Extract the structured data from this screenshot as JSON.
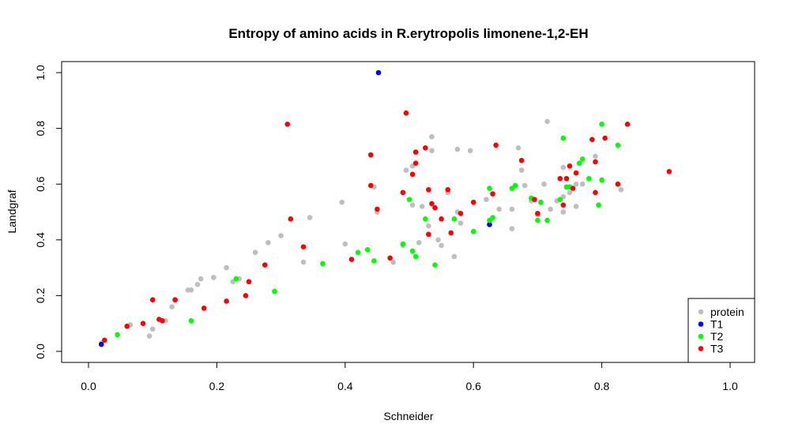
{
  "chart_data": {
    "type": "scatter",
    "title": "Entropy of amino acids in R.erytropolis limonene-1,2-EH",
    "xlabel": "Schneider",
    "ylabel": "Landgraf",
    "xlim": [
      0.0,
      1.0
    ],
    "ylim": [
      0.0,
      1.0
    ],
    "xticks": [
      "0.0",
      "0.2",
      "0.4",
      "0.6",
      "0.8",
      "1.0"
    ],
    "yticks": [
      "0.0",
      "0.2",
      "0.4",
      "0.6",
      "0.8",
      "1.0"
    ],
    "grid": false,
    "legend_position": "bottom-right",
    "series": [
      {
        "name": "protein",
        "color": "#bebebe",
        "points": [
          [
            0.02,
            0.03
          ],
          [
            0.065,
            0.095
          ],
          [
            0.095,
            0.055
          ],
          [
            0.1,
            0.08
          ],
          [
            0.12,
            0.11
          ],
          [
            0.13,
            0.16
          ],
          [
            0.135,
            0.185
          ],
          [
            0.155,
            0.22
          ],
          [
            0.16,
            0.22
          ],
          [
            0.17,
            0.24
          ],
          [
            0.175,
            0.26
          ],
          [
            0.195,
            0.265
          ],
          [
            0.215,
            0.3
          ],
          [
            0.225,
            0.25
          ],
          [
            0.235,
            0.26
          ],
          [
            0.26,
            0.355
          ],
          [
            0.28,
            0.39
          ],
          [
            0.3,
            0.415
          ],
          [
            0.335,
            0.32
          ],
          [
            0.345,
            0.48
          ],
          [
            0.395,
            0.535
          ],
          [
            0.4,
            0.385
          ],
          [
            0.445,
            0.59
          ],
          [
            0.45,
            0.5
          ],
          [
            0.475,
            0.32
          ],
          [
            0.49,
            0.38
          ],
          [
            0.495,
            0.65
          ],
          [
            0.505,
            0.665
          ],
          [
            0.505,
            0.525
          ],
          [
            0.515,
            0.39
          ],
          [
            0.52,
            0.52
          ],
          [
            0.53,
            0.42
          ],
          [
            0.53,
            0.45
          ],
          [
            0.535,
            0.77
          ],
          [
            0.535,
            0.72
          ],
          [
            0.545,
            0.4
          ],
          [
            0.55,
            0.38
          ],
          [
            0.56,
            0.57
          ],
          [
            0.57,
            0.34
          ],
          [
            0.575,
            0.725
          ],
          [
            0.575,
            0.5
          ],
          [
            0.58,
            0.46
          ],
          [
            0.595,
            0.72
          ],
          [
            0.62,
            0.545
          ],
          [
            0.64,
            0.51
          ],
          [
            0.66,
            0.44
          ],
          [
            0.66,
            0.51
          ],
          [
            0.67,
            0.73
          ],
          [
            0.675,
            0.65
          ],
          [
            0.68,
            0.595
          ],
          [
            0.69,
            0.54
          ],
          [
            0.7,
            0.49
          ],
          [
            0.71,
            0.6
          ],
          [
            0.715,
            0.825
          ],
          [
            0.72,
            0.51
          ],
          [
            0.73,
            0.54
          ],
          [
            0.74,
            0.555
          ],
          [
            0.74,
            0.5
          ],
          [
            0.74,
            0.66
          ],
          [
            0.75,
            0.57
          ],
          [
            0.76,
            0.52
          ],
          [
            0.76,
            0.6
          ],
          [
            0.77,
            0.6
          ],
          [
            0.78,
            0.62
          ],
          [
            0.79,
            0.7
          ],
          [
            0.795,
            0.525
          ],
          [
            0.83,
            0.58
          ]
        ]
      },
      {
        "name": "T1",
        "color": "#0000ff",
        "points": [
          [
            0.02,
            0.025
          ],
          [
            0.452,
            1.0
          ],
          [
            0.625,
            0.455
          ]
        ]
      },
      {
        "name": "T2",
        "color": "#00ff00",
        "points": [
          [
            0.045,
            0.06
          ],
          [
            0.16,
            0.11
          ],
          [
            0.23,
            0.26
          ],
          [
            0.29,
            0.215
          ],
          [
            0.365,
            0.315
          ],
          [
            0.42,
            0.355
          ],
          [
            0.435,
            0.365
          ],
          [
            0.445,
            0.325
          ],
          [
            0.49,
            0.385
          ],
          [
            0.5,
            0.545
          ],
          [
            0.505,
            0.36
          ],
          [
            0.51,
            0.34
          ],
          [
            0.525,
            0.475
          ],
          [
            0.54,
            0.31
          ],
          [
            0.57,
            0.475
          ],
          [
            0.6,
            0.43
          ],
          [
            0.625,
            0.47
          ],
          [
            0.625,
            0.585
          ],
          [
            0.63,
            0.48
          ],
          [
            0.66,
            0.585
          ],
          [
            0.665,
            0.595
          ],
          [
            0.69,
            0.55
          ],
          [
            0.7,
            0.47
          ],
          [
            0.705,
            0.535
          ],
          [
            0.715,
            0.47
          ],
          [
            0.735,
            0.545
          ],
          [
            0.74,
            0.765
          ],
          [
            0.745,
            0.59
          ],
          [
            0.75,
            0.59
          ],
          [
            0.765,
            0.675
          ],
          [
            0.77,
            0.69
          ],
          [
            0.78,
            0.62
          ],
          [
            0.795,
            0.525
          ],
          [
            0.8,
            0.615
          ],
          [
            0.8,
            0.815
          ],
          [
            0.825,
            0.74
          ]
        ]
      },
      {
        "name": "T3",
        "color": "#ff0000",
        "points": [
          [
            0.025,
            0.04
          ],
          [
            0.06,
            0.09
          ],
          [
            0.085,
            0.1
          ],
          [
            0.1,
            0.185
          ],
          [
            0.11,
            0.115
          ],
          [
            0.115,
            0.11
          ],
          [
            0.135,
            0.185
          ],
          [
            0.18,
            0.155
          ],
          [
            0.215,
            0.18
          ],
          [
            0.245,
            0.2
          ],
          [
            0.25,
            0.25
          ],
          [
            0.275,
            0.31
          ],
          [
            0.31,
            0.815
          ],
          [
            0.315,
            0.475
          ],
          [
            0.335,
            0.375
          ],
          [
            0.41,
            0.33
          ],
          [
            0.44,
            0.595
          ],
          [
            0.44,
            0.705
          ],
          [
            0.45,
            0.51
          ],
          [
            0.47,
            0.335
          ],
          [
            0.49,
            0.57
          ],
          [
            0.495,
            0.855
          ],
          [
            0.505,
            0.635
          ],
          [
            0.51,
            0.675
          ],
          [
            0.51,
            0.715
          ],
          [
            0.525,
            0.73
          ],
          [
            0.53,
            0.58
          ],
          [
            0.53,
            0.42
          ],
          [
            0.535,
            0.53
          ],
          [
            0.54,
            0.515
          ],
          [
            0.55,
            0.475
          ],
          [
            0.56,
            0.58
          ],
          [
            0.565,
            0.425
          ],
          [
            0.58,
            0.495
          ],
          [
            0.6,
            0.535
          ],
          [
            0.63,
            0.565
          ],
          [
            0.635,
            0.74
          ],
          [
            0.675,
            0.685
          ],
          [
            0.695,
            0.545
          ],
          [
            0.7,
            0.495
          ],
          [
            0.735,
            0.62
          ],
          [
            0.74,
            0.525
          ],
          [
            0.745,
            0.62
          ],
          [
            0.75,
            0.665
          ],
          [
            0.755,
            0.585
          ],
          [
            0.76,
            0.64
          ],
          [
            0.785,
            0.76
          ],
          [
            0.79,
            0.57
          ],
          [
            0.79,
            0.68
          ],
          [
            0.805,
            0.765
          ],
          [
            0.825,
            0.6
          ],
          [
            0.84,
            0.815
          ],
          [
            0.905,
            0.645
          ]
        ]
      }
    ]
  }
}
